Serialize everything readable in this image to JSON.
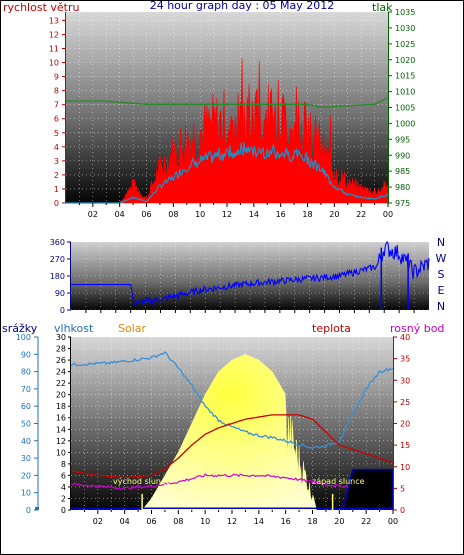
{
  "header": {
    "left_label": "rychlost větru",
    "title": "24 hour graph day : 05 May 2012",
    "right_label": "tlak"
  },
  "compass": [
    "N",
    "W",
    "S",
    "E",
    "N"
  ],
  "bottom_labels": {
    "srazky": "srážky",
    "vlhkost": "vlhkost",
    "solar": "Solar",
    "teplota": "teplota",
    "rosny_bod": "rosný bod",
    "sunrise": "východ slunce",
    "sunset": "západ slunce"
  },
  "colors": {
    "wind_gust": "#ff0000",
    "wind_avg": "#1e90c8",
    "pressure": "#2a8a2a",
    "direction": "#0000ff",
    "humidity": "#3a8fd8",
    "temperature": "#c80000",
    "dewpoint": "#d000d0",
    "solar": "#ffff66",
    "rain": "#0000c0"
  },
  "chart_data": [
    {
      "type": "line",
      "name": "wind-pressure",
      "x_ticks": [
        "02",
        "04",
        "06",
        "08",
        "10",
        "12",
        "14",
        "16",
        "18",
        "20",
        "22",
        "00"
      ],
      "y_left_ticks": [
        0,
        1,
        2,
        3,
        4,
        5,
        6,
        7,
        8,
        9,
        10,
        11,
        12,
        13
      ],
      "y_right_ticks": [
        975,
        980,
        985,
        990,
        995,
        1000,
        1005,
        1010,
        1015,
        1020,
        1025,
        1030,
        1035
      ],
      "ylim_left": [
        0,
        13.6
      ],
      "ylim_right": [
        975,
        1035
      ],
      "x_range_hours": [
        0,
        24
      ],
      "gust_profile_hours": [
        0,
        4,
        5,
        6,
        7,
        8,
        9,
        10,
        11,
        12,
        13,
        14,
        15,
        16,
        17,
        18,
        19,
        20,
        21,
        22,
        23,
        24
      ],
      "gust_profile_values": [
        0,
        0,
        1.3,
        0.3,
        2.5,
        3.5,
        4.5,
        5,
        5.5,
        5.8,
        6,
        6,
        6,
        5.8,
        5.5,
        5,
        4,
        2.2,
        1.5,
        1,
        0.8,
        1.2
      ],
      "avg_profile_values": [
        0,
        0,
        0.4,
        0.1,
        1.2,
        1.8,
        2.6,
        3,
        3.3,
        3.6,
        3.8,
        3.8,
        3.7,
        3.6,
        3.4,
        3.2,
        2.4,
        1.2,
        0.6,
        0.4,
        0.3,
        0.6
      ],
      "pressure_hours": [
        0,
        3,
        6,
        9,
        12,
        15,
        18,
        19,
        21,
        23,
        24
      ],
      "pressure_values": [
        1007,
        1007,
        1006,
        1006,
        1006,
        1006,
        1006,
        1005,
        1005.5,
        1006,
        1008
      ]
    },
    {
      "type": "line",
      "name": "wind-direction",
      "y_ticks": [
        0,
        90,
        180,
        270,
        360
      ],
      "ylim": [
        0,
        360
      ],
      "x_range_hours": [
        0,
        24
      ],
      "dir_hours": [
        0,
        4,
        4.2,
        6,
        9,
        12,
        15,
        18,
        20.5,
        21,
        22,
        23,
        24
      ],
      "dir_values": [
        135,
        135,
        40,
        55,
        110,
        140,
        160,
        180,
        230,
        330,
        300,
        200,
        250
      ]
    },
    {
      "type": "line",
      "name": "humidity-temp-solar",
      "y_left_rain_ticks": [
        0,
        10,
        20,
        30,
        40,
        50,
        60,
        70,
        80,
        90,
        100
      ],
      "y_left_hum_ticks": [
        0,
        2,
        4,
        6,
        8,
        10,
        12,
        14,
        16,
        18,
        20,
        22,
        24,
        26,
        28,
        30
      ],
      "y_right_temp_ticks": [
        0,
        5,
        10,
        15,
        20,
        25,
        30,
        35,
        40
      ],
      "ylim_hum": [
        0,
        30
      ],
      "ylim_temp": [
        0,
        40
      ],
      "x_range_hours": [
        0,
        24
      ],
      "humidity_hours": [
        0,
        3,
        5,
        6,
        7,
        8,
        9,
        10,
        11,
        12,
        13,
        14,
        15,
        16,
        17,
        18,
        19,
        20,
        21,
        22,
        23,
        24
      ],
      "humidity_values": [
        84,
        85,
        87,
        88,
        91,
        82,
        72,
        60,
        52,
        48,
        45,
        43,
        42,
        40,
        38,
        36,
        37,
        40,
        55,
        70,
        80,
        82
      ],
      "temperature_hours": [
        0,
        2,
        4,
        6,
        7,
        8,
        9,
        10,
        11,
        12,
        13,
        14,
        15,
        16,
        17,
        18,
        19,
        20,
        21,
        22,
        23,
        24
      ],
      "temperature_values": [
        9,
        8,
        7.5,
        8,
        9.5,
        12,
        15,
        17.5,
        19,
        20,
        21,
        21.5,
        22,
        22,
        22,
        21,
        18,
        15,
        14,
        13,
        12,
        11
      ],
      "dewpoint_hours": [
        0,
        2,
        4,
        6,
        8,
        10,
        12,
        14,
        16,
        18,
        20,
        22,
        24
      ],
      "dewpoint_values": [
        6,
        5.5,
        5,
        5.5,
        6.5,
        8,
        8,
        8,
        7.5,
        6.5,
        5.5,
        5.5,
        5.5
      ],
      "solar_hours": [
        5.3,
        6,
        7,
        8,
        9,
        10,
        11,
        12,
        13,
        14,
        15,
        16,
        17,
        17.5,
        18,
        18.3
      ],
      "solar_values": [
        0,
        2,
        6,
        10,
        15,
        20,
        24,
        26,
        27,
        26,
        24,
        20,
        12,
        8,
        3,
        0
      ]
    }
  ]
}
